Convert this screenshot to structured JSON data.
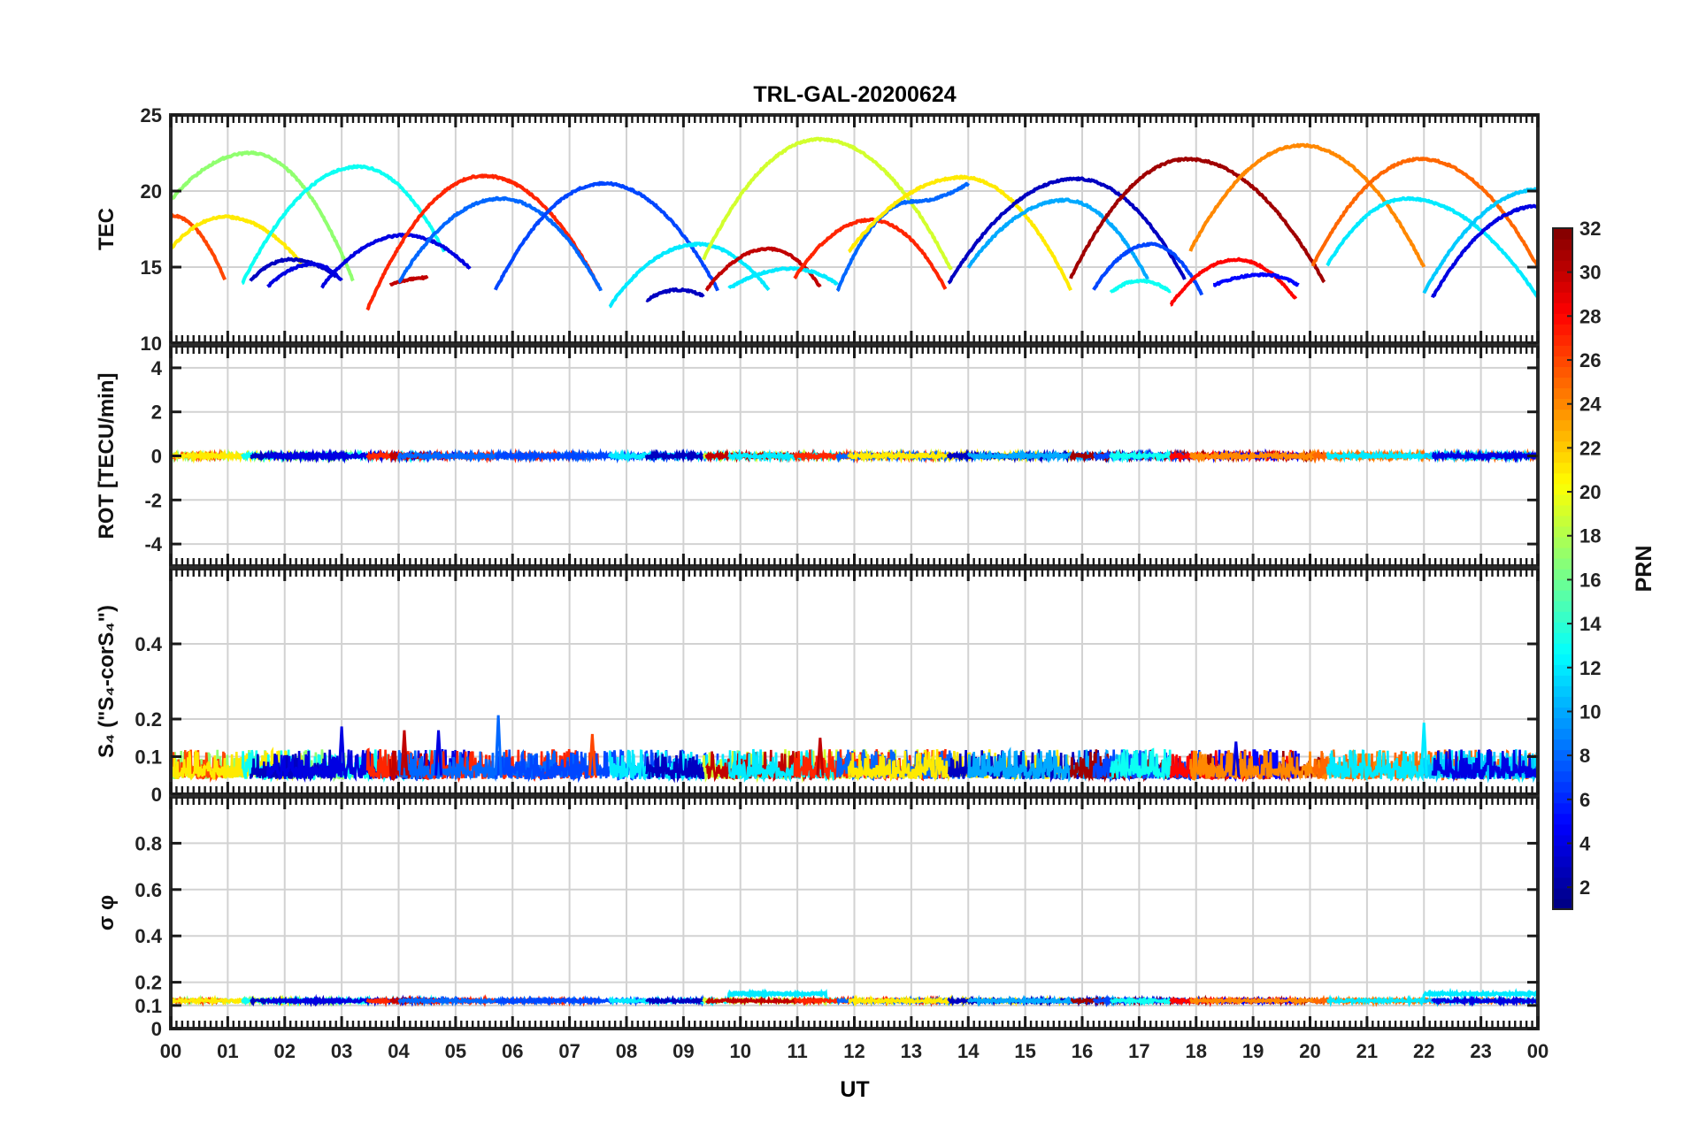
{
  "chart_data": {
    "type": "line",
    "title": "TRL-GAL-20200624",
    "xlabel": "UT",
    "x_ticks": [
      "00",
      "01",
      "02",
      "03",
      "04",
      "05",
      "06",
      "07",
      "08",
      "09",
      "10",
      "11",
      "12",
      "13",
      "14",
      "15",
      "16",
      "17",
      "18",
      "19",
      "20",
      "21",
      "22",
      "23",
      "00"
    ],
    "xlim": [
      0,
      24
    ],
    "grid": true,
    "panels": [
      {
        "name": "tec",
        "ylabel": "TEC",
        "ylim": [
          10,
          25
        ],
        "y_ticks": [
          "10",
          "15",
          "20",
          "25"
        ],
        "y_tick_values": [
          10,
          15,
          20,
          25
        ],
        "series": [
          {
            "prn": 17,
            "arcs": [
              {
                "start": 0.0,
                "end": 3.2,
                "peak_t": 1.4,
                "peak": 22.5,
                "v0": 19.4,
                "v1": 14.1
              }
            ]
          },
          {
            "prn": 26,
            "arcs": [
              {
                "start": 0.0,
                "end": 0.95,
                "peak_t": 0.0,
                "peak": 18.4,
                "v0": 18.4,
                "v1": 14.2
              }
            ]
          },
          {
            "prn": 21,
            "arcs": [
              {
                "start": 0.0,
                "end": 2.3,
                "peak_t": 0.95,
                "peak": 18.3,
                "v0": 16.2,
                "v1": 15.2
              }
            ]
          },
          {
            "prn": 13,
            "arcs": [
              {
                "start": 1.25,
                "end": 4.8,
                "peak_t": 3.3,
                "peak": 21.6,
                "v0": 13.9,
                "v1": 16.0
              }
            ]
          },
          {
            "prn": 3,
            "arcs": [
              {
                "start": 1.4,
                "end": 2.9,
                "peak_t": 2.1,
                "peak": 15.5,
                "v0": 14.1,
                "v1": 14.4
              }
            ]
          },
          {
            "prn": 4,
            "arcs": [
              {
                "start": 1.7,
                "end": 3.0,
                "peak_t": 2.5,
                "peak": 15.2,
                "v0": 13.7,
                "v1": 14.1
              }
            ]
          },
          {
            "prn": 4,
            "arcs": [
              {
                "start": 2.65,
                "end": 5.25,
                "peak_t": 4.1,
                "peak": 17.1,
                "v0": 13.7,
                "v1": 14.9
              }
            ]
          },
          {
            "prn": 27,
            "arcs": [
              {
                "start": 3.45,
                "end": 7.5,
                "peak_t": 5.5,
                "peak": 21.0,
                "v0": 12.2,
                "v1": 13.8
              }
            ]
          },
          {
            "prn": 30,
            "arcs": [
              {
                "start": 3.85,
                "end": 4.5,
                "peak_t": 4.5,
                "peak": 14.3,
                "v0": 13.8,
                "v1": 14.3
              }
            ]
          },
          {
            "prn": 8,
            "arcs": [
              {
                "start": 4.0,
                "end": 7.55,
                "peak_t": 5.8,
                "peak": 19.5,
                "v0": 14.0,
                "v1": 13.5
              }
            ]
          },
          {
            "prn": 7,
            "arcs": [
              {
                "start": 5.7,
                "end": 9.6,
                "peak_t": 7.6,
                "peak": 20.5,
                "v0": 13.5,
                "v1": 13.5
              }
            ]
          },
          {
            "prn": 12,
            "arcs": [
              {
                "start": 7.7,
                "end": 10.5,
                "peak_t": 9.25,
                "peak": 16.5,
                "v0": 12.4,
                "v1": 13.5
              }
            ]
          },
          {
            "prn": 3,
            "arcs": [
              {
                "start": 8.35,
                "end": 9.35,
                "peak_t": 8.9,
                "peak": 13.5,
                "v0": 12.8,
                "v1": 13.1
              }
            ]
          },
          {
            "prn": 19,
            "arcs": [
              {
                "start": 9.35,
                "end": 13.7,
                "peak_t": 11.4,
                "peak": 23.4,
                "v0": 15.5,
                "v1": 14.8
              }
            ]
          },
          {
            "prn": 30,
            "arcs": [
              {
                "start": 9.4,
                "end": 11.4,
                "peak_t": 10.5,
                "peak": 16.2,
                "v0": 13.5,
                "v1": 13.7
              }
            ]
          },
          {
            "prn": 12,
            "arcs": [
              {
                "start": 9.8,
                "end": 11.7,
                "peak_t": 10.9,
                "peak": 14.9,
                "v0": 13.6,
                "v1": 13.9
              }
            ]
          },
          {
            "prn": 27,
            "arcs": [
              {
                "start": 10.95,
                "end": 13.6,
                "peak_t": 12.3,
                "peak": 18.1,
                "v0": 14.3,
                "v1": 13.6
              }
            ]
          },
          {
            "prn": 8,
            "arcs": [
              {
                "start": 11.7,
                "end": 14.0,
                "peak_t": 13.0,
                "peak": 19.3,
                "v0": 13.4,
                "v1": 20.5
              }
            ]
          },
          {
            "prn": 21,
            "arcs": [
              {
                "start": 11.9,
                "end": 15.8,
                "peak_t": 13.9,
                "peak": 20.9,
                "v0": 16.0,
                "v1": 13.5
              }
            ]
          },
          {
            "prn": 3,
            "arcs": [
              {
                "start": 13.65,
                "end": 17.8,
                "peak_t": 15.9,
                "peak": 20.8,
                "v0": 13.9,
                "v1": 14.2
              }
            ]
          },
          {
            "prn": 10,
            "arcs": [
              {
                "start": 14.0,
                "end": 17.15,
                "peak_t": 15.7,
                "peak": 19.4,
                "v0": 15.0,
                "v1": 14.2
              }
            ]
          },
          {
            "prn": 31,
            "arcs": [
              {
                "start": 15.8,
                "end": 20.25,
                "peak_t": 17.85,
                "peak": 22.1,
                "v0": 14.3,
                "v1": 14.0
              }
            ]
          },
          {
            "prn": 7,
            "arcs": [
              {
                "start": 16.2,
                "end": 18.1,
                "peak_t": 17.2,
                "peak": 16.5,
                "v0": 13.5,
                "v1": 13.2
              }
            ]
          },
          {
            "prn": 13,
            "arcs": [
              {
                "start": 16.5,
                "end": 17.55,
                "peak_t": 17.0,
                "peak": 14.1,
                "v0": 13.3,
                "v1": 13.4
              }
            ]
          },
          {
            "prn": 28,
            "arcs": [
              {
                "start": 17.55,
                "end": 19.75,
                "peak_t": 18.7,
                "peak": 15.5,
                "v0": 12.5,
                "v1": 12.9
              }
            ]
          },
          {
            "prn": 5,
            "arcs": [
              {
                "start": 18.3,
                "end": 19.8,
                "peak_t": 19.2,
                "peak": 14.5,
                "v0": 13.8,
                "v1": 13.8
              }
            ]
          },
          {
            "prn": 24,
            "arcs": [
              {
                "start": 17.9,
                "end": 22.0,
                "peak_t": 19.85,
                "peak": 23.0,
                "v0": 16.1,
                "v1": 15.0
              }
            ]
          },
          {
            "prn": 25,
            "arcs": [
              {
                "start": 20.05,
                "end": 24.0,
                "peak_t": 21.95,
                "peak": 22.1,
                "v0": 15.1,
                "v1": 15.0
              }
            ]
          },
          {
            "prn": 12,
            "arcs": [
              {
                "start": 20.3,
                "end": 24.0,
                "peak_t": 21.7,
                "peak": 19.5,
                "v0": 15.1,
                "v1": 13.0
              }
            ]
          },
          {
            "prn": 11,
            "arcs": [
              {
                "start": 22.0,
                "end": 24.0,
                "peak_t": 24.0,
                "peak": 20.1,
                "v0": 13.3,
                "v1": 20.1
              }
            ]
          },
          {
            "prn": 4,
            "arcs": [
              {
                "start": 22.15,
                "end": 24.0,
                "peak_t": 24.0,
                "peak": 19.0,
                "v0": 13.0,
                "v1": 19.0
              }
            ]
          }
        ]
      },
      {
        "name": "rot",
        "ylabel": "ROT [TECU/min]",
        "ylim": [
          -5,
          5
        ],
        "y_ticks": [
          "-4",
          "-2",
          "0",
          "2",
          "4"
        ],
        "y_tick_values": [
          -4,
          -2,
          0,
          2,
          4
        ],
        "baseline": 0.0,
        "noise": 0.08
      },
      {
        "name": "s4",
        "ylabel": "S₄ (\"S₄-corS₄\")",
        "ylim": [
          0,
          0.6
        ],
        "y_ticks": [
          "0",
          "0.1",
          "0.2",
          "0.4"
        ],
        "y_tick_values": [
          0,
          0.1,
          0.2,
          0.4
        ],
        "baseline": 0.04,
        "typical_max": 0.12,
        "peaks": [
          {
            "t": 3.0,
            "v": 0.18,
            "prn": 4
          },
          {
            "t": 4.1,
            "v": 0.17,
            "prn": 30
          },
          {
            "t": 4.7,
            "v": 0.17,
            "prn": 4
          },
          {
            "t": 5.75,
            "v": 0.21,
            "prn": 8
          },
          {
            "t": 7.4,
            "v": 0.16,
            "prn": 26
          },
          {
            "t": 11.4,
            "v": 0.15,
            "prn": 30
          },
          {
            "t": 18.7,
            "v": 0.14,
            "prn": 4
          },
          {
            "t": 22.0,
            "v": 0.19,
            "prn": 12
          }
        ]
      },
      {
        "name": "sigma_phi",
        "ylabel": "σ φ",
        "ylim": [
          0,
          1
        ],
        "y_ticks": [
          "0",
          "0.1",
          "0.2",
          "0.4",
          "0.6",
          "0.8"
        ],
        "y_tick_values": [
          0,
          0.1,
          0.2,
          0.4,
          0.6,
          0.8
        ],
        "baseline": 0.12,
        "bumps": [
          {
            "start": 9.8,
            "end": 11.5,
            "v": 0.15,
            "prn": 12
          },
          {
            "start": 22.0,
            "end": 24.0,
            "v": 0.15,
            "prn": 12
          }
        ]
      }
    ],
    "colorbar": {
      "label": "PRN",
      "range": [
        1,
        32
      ],
      "ticks": [
        "2",
        "4",
        "6",
        "8",
        "10",
        "12",
        "14",
        "16",
        "18",
        "20",
        "22",
        "24",
        "26",
        "28",
        "30",
        "32"
      ],
      "tick_values": [
        2,
        4,
        6,
        8,
        10,
        12,
        14,
        16,
        18,
        20,
        22,
        24,
        26,
        28,
        30,
        32
      ],
      "colormap": "jet"
    }
  }
}
